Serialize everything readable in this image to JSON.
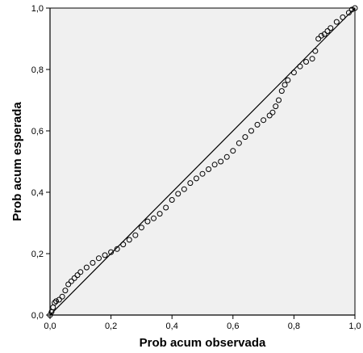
{
  "chart_data": {
    "type": "scatter",
    "xlabel": "Prob acum observada",
    "ylabel": "Prob acum esperada",
    "xlim": [
      0,
      1
    ],
    "ylim": [
      0,
      1
    ],
    "x_ticks": [
      "0,0",
      "0,2",
      "0,4",
      "0,6",
      "0,8",
      "1,0"
    ],
    "y_ticks": [
      "0,0",
      "0,2",
      "0,4",
      "0,6",
      "0,8",
      "1,0"
    ],
    "grid": false,
    "legend": "none",
    "reference_line": {
      "from": [
        0,
        0
      ],
      "to": [
        1,
        1
      ]
    },
    "colors": {
      "plot_background": "#f0f0f0",
      "marker": "#000000",
      "line": "#000000"
    },
    "points": [
      [
        0.0,
        0.0
      ],
      [
        0.005,
        0.01
      ],
      [
        0.01,
        0.025
      ],
      [
        0.015,
        0.04
      ],
      [
        0.02,
        0.045
      ],
      [
        0.03,
        0.05
      ],
      [
        0.04,
        0.06
      ],
      [
        0.05,
        0.08
      ],
      [
        0.06,
        0.1
      ],
      [
        0.07,
        0.11
      ],
      [
        0.08,
        0.12
      ],
      [
        0.09,
        0.13
      ],
      [
        0.1,
        0.14
      ],
      [
        0.12,
        0.155
      ],
      [
        0.14,
        0.17
      ],
      [
        0.16,
        0.185
      ],
      [
        0.18,
        0.195
      ],
      [
        0.2,
        0.205
      ],
      [
        0.22,
        0.215
      ],
      [
        0.24,
        0.23
      ],
      [
        0.26,
        0.245
      ],
      [
        0.28,
        0.26
      ],
      [
        0.3,
        0.285
      ],
      [
        0.32,
        0.305
      ],
      [
        0.34,
        0.315
      ],
      [
        0.36,
        0.33
      ],
      [
        0.38,
        0.35
      ],
      [
        0.4,
        0.375
      ],
      [
        0.42,
        0.395
      ],
      [
        0.44,
        0.41
      ],
      [
        0.46,
        0.43
      ],
      [
        0.48,
        0.445
      ],
      [
        0.5,
        0.46
      ],
      [
        0.52,
        0.475
      ],
      [
        0.54,
        0.49
      ],
      [
        0.56,
        0.5
      ],
      [
        0.58,
        0.515
      ],
      [
        0.6,
        0.535
      ],
      [
        0.62,
        0.56
      ],
      [
        0.64,
        0.58
      ],
      [
        0.66,
        0.6
      ],
      [
        0.68,
        0.62
      ],
      [
        0.7,
        0.635
      ],
      [
        0.72,
        0.65
      ],
      [
        0.73,
        0.66
      ],
      [
        0.74,
        0.68
      ],
      [
        0.75,
        0.7
      ],
      [
        0.76,
        0.73
      ],
      [
        0.77,
        0.75
      ],
      [
        0.78,
        0.765
      ],
      [
        0.8,
        0.79
      ],
      [
        0.82,
        0.81
      ],
      [
        0.84,
        0.825
      ],
      [
        0.86,
        0.835
      ],
      [
        0.87,
        0.86
      ],
      [
        0.88,
        0.9
      ],
      [
        0.89,
        0.91
      ],
      [
        0.9,
        0.915
      ],
      [
        0.91,
        0.925
      ],
      [
        0.92,
        0.935
      ],
      [
        0.94,
        0.955
      ],
      [
        0.96,
        0.97
      ],
      [
        0.98,
        0.985
      ],
      [
        0.99,
        0.995
      ],
      [
        1.0,
        1.0
      ]
    ]
  }
}
